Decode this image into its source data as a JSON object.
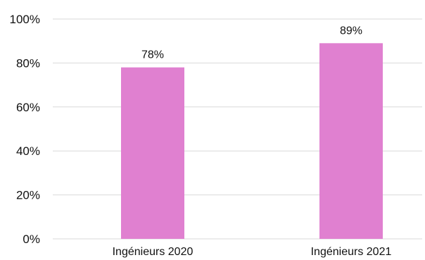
{
  "chart_data": {
    "type": "bar",
    "categories": [
      "Ingénieurs 2020",
      "Ingénieurs 2021"
    ],
    "values": [
      78,
      89
    ],
    "data_labels": [
      "78%",
      "89%"
    ],
    "ylim": [
      0,
      100
    ],
    "yticks": [
      0,
      20,
      40,
      60,
      80,
      100
    ],
    "ytick_labels": [
      "0%",
      "20%",
      "40%",
      "60%",
      "80%",
      "100%"
    ],
    "title": "",
    "xlabel": "",
    "ylabel": "",
    "grid": "horizontal",
    "legend": "none",
    "bar_color": "#e080d0"
  }
}
